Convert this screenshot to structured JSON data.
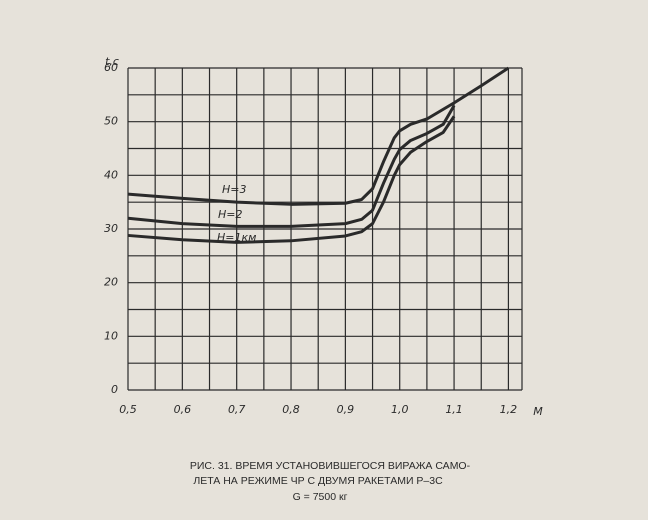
{
  "chart_data": {
    "type": "line",
    "x_label": "M",
    "y_label": "t,c",
    "caption": [
      "РИС. 31. ВРЕМЯ УСТАНОВИВШЕГОСЯ ВИРАЖА САМО-",
      "ЛЕТА НА РЕЖИМЕ ЧР С ДВУМЯ РАКЕТАМИ Р–3С",
      "G = 7500 кг"
    ],
    "xlim": [
      0.5,
      1.225
    ],
    "ylim": [
      0,
      60
    ],
    "xticks": [
      {
        "value": 0.5,
        "label": "0,5"
      },
      {
        "value": 0.6,
        "label": "0,6"
      },
      {
        "value": 0.7,
        "label": "0,7"
      },
      {
        "value": 0.8,
        "label": "0,8"
      },
      {
        "value": 0.9,
        "label": "0,9"
      },
      {
        "value": 1.0,
        "label": "1,0"
      },
      {
        "value": 1.1,
        "label": "1,1"
      },
      {
        "value": 1.2,
        "label": "1,2"
      }
    ],
    "yticks": [
      0,
      10,
      20,
      30,
      40,
      50,
      60
    ],
    "xgrid": [
      0.5,
      0.55,
      0.6,
      0.65,
      0.7,
      0.75,
      0.8,
      0.85,
      0.9,
      0.95,
      1.0,
      1.05,
      1.1,
      1.15,
      1.2,
      1.225
    ],
    "ygrid": [
      0,
      5,
      10,
      15,
      20,
      25,
      30,
      35,
      40,
      45,
      50,
      55,
      60
    ],
    "grid": true,
    "series": [
      {
        "name": "H=3",
        "color": "#2a2a2a",
        "x": [
          0.5,
          0.6,
          0.7,
          0.8,
          0.9,
          0.93,
          0.95,
          0.97,
          0.99,
          1.0,
          1.02,
          1.05,
          1.1,
          1.15,
          1.2
        ],
        "values": [
          36.5,
          35.7,
          35.0,
          34.6,
          34.8,
          35.5,
          37.5,
          42.5,
          47.0,
          48.3,
          49.5,
          50.5,
          53.5,
          56.7,
          60
        ]
      },
      {
        "name": "H=2",
        "color": "#2a2a2a",
        "x": [
          0.5,
          0.6,
          0.7,
          0.8,
          0.9,
          0.93,
          0.95,
          0.97,
          0.99,
          1.0,
          1.02,
          1.05,
          1.08,
          1.1
        ],
        "values": [
          32.0,
          31.0,
          30.5,
          30.5,
          31.0,
          31.8,
          33.5,
          38.5,
          43.0,
          44.8,
          46.5,
          47.8,
          49.5,
          53.0
        ]
      },
      {
        "name": "H=1км",
        "color": "#2a2a2a",
        "x": [
          0.5,
          0.6,
          0.7,
          0.8,
          0.9,
          0.93,
          0.95,
          0.97,
          0.99,
          1.0,
          1.02,
          1.05,
          1.08,
          1.1
        ],
        "values": [
          28.8,
          28.0,
          27.5,
          27.8,
          28.7,
          29.5,
          31.0,
          35.0,
          40.0,
          42.0,
          44.3,
          46.3,
          48.0,
          51.0
        ]
      }
    ]
  }
}
